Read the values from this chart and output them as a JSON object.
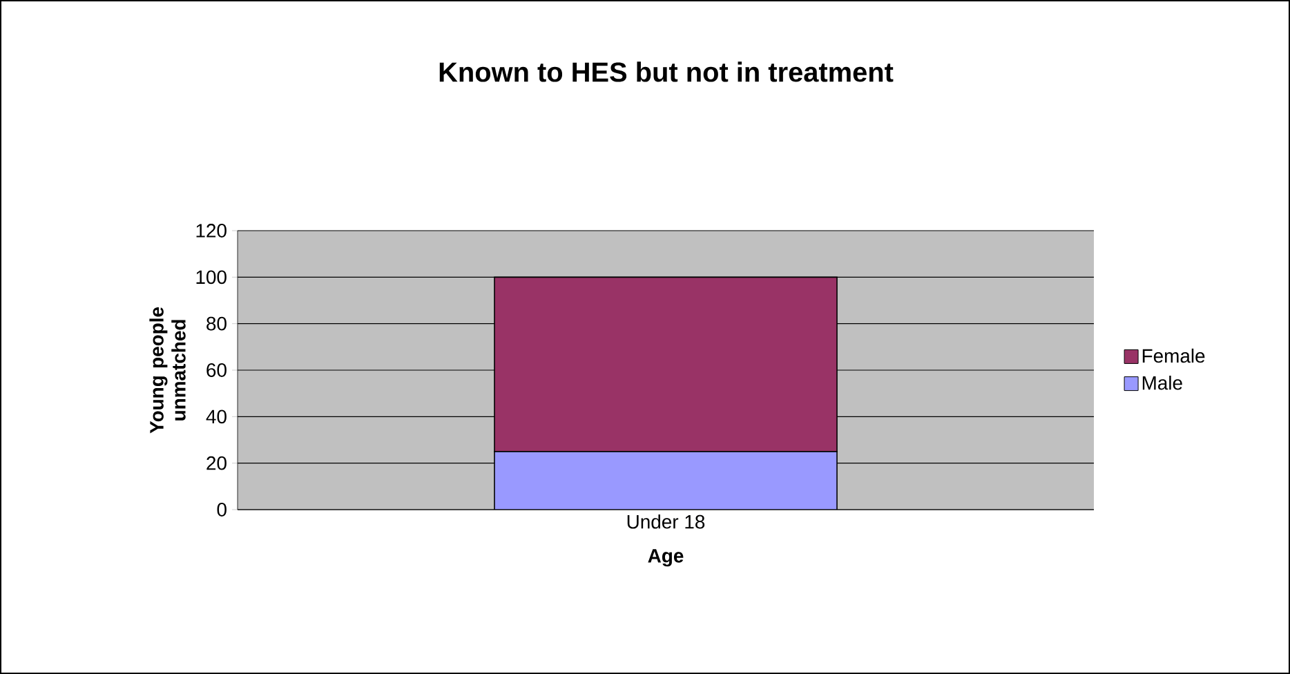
{
  "chart_data": {
    "type": "bar",
    "title": "Known to HES but not in treatment",
    "xlabel": "Age",
    "ylabel": "Young people unmatched",
    "categories": [
      "Under 18"
    ],
    "stacked": true,
    "series": [
      {
        "name": "Male",
        "color": "#9999ff",
        "values": [
          25
        ]
      },
      {
        "name": "Female",
        "color": "#993366",
        "values": [
          75
        ]
      }
    ],
    "ylim": [
      0,
      120
    ],
    "yticks": [
      0,
      20,
      40,
      60,
      80,
      100,
      120
    ],
    "grid": "y",
    "legend": "right"
  }
}
